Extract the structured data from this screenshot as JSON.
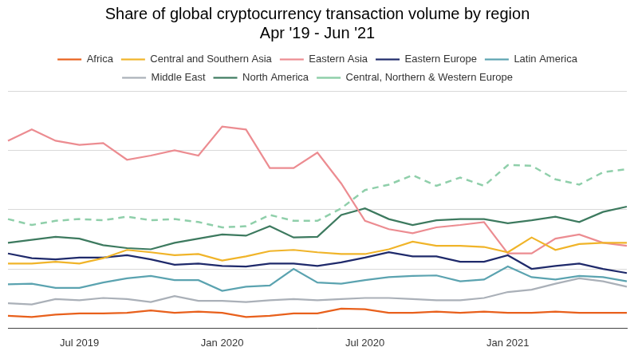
{
  "chart_data": {
    "type": "line",
    "title": [
      "Share of global cryptocurrency transaction volume by region",
      "Apr '19 - Jun '21"
    ],
    "categories": [
      null,
      null,
      null,
      "Jul 2019",
      null,
      null,
      null,
      null,
      null,
      "Jan 2020",
      null,
      null,
      null,
      null,
      null,
      "Jul 2020",
      null,
      null,
      null,
      null,
      null,
      "Jan 2021",
      null,
      null,
      null,
      null,
      null
    ],
    "ylim": [
      0,
      40
    ],
    "yticks": [
      0,
      10,
      20,
      30,
      40
    ],
    "grid": true,
    "legend": "top",
    "tick_labels": "x",
    "series": [
      {
        "name": "Africa",
        "color": "#e8601c",
        "line_style": "solid",
        "values": [
          2.1,
          1.9,
          2.3,
          2.5,
          2.5,
          2.6,
          3.0,
          2.6,
          2.8,
          2.6,
          1.9,
          2.1,
          2.5,
          2.5,
          3.3,
          3.2,
          2.6,
          2.6,
          2.8,
          2.6,
          2.8,
          2.6,
          2.6,
          2.8,
          2.6,
          2.6,
          2.6
        ]
      },
      {
        "name": "Central and Southern Asia",
        "color": "#f0b429",
        "line_style": "solid",
        "values": [
          10.9,
          10.9,
          11.2,
          10.9,
          11.8,
          13.2,
          12.8,
          12.3,
          12.5,
          11.4,
          12.1,
          13.0,
          13.2,
          12.8,
          12.5,
          12.5,
          13.3,
          14.6,
          13.9,
          13.9,
          13.7,
          12.8,
          15.3,
          13.2,
          14.2,
          14.4,
          14.4
        ]
      },
      {
        "name": "Eastern Asia",
        "color": "#ec8c91",
        "line_style": "solid",
        "values": [
          31.6,
          33.5,
          31.6,
          30.9,
          31.2,
          28.4,
          29.1,
          30.0,
          29.1,
          34.0,
          33.5,
          27.0,
          27.0,
          29.6,
          24.4,
          18.1,
          16.7,
          16.0,
          17.0,
          17.4,
          17.9,
          12.6,
          12.6,
          15.1,
          15.8,
          14.4,
          13.9
        ]
      },
      {
        "name": "Eastern Europe",
        "color": "#1f2a6b",
        "line_style": "solid",
        "values": [
          12.6,
          11.8,
          11.6,
          11.9,
          11.9,
          12.3,
          11.6,
          10.7,
          10.9,
          10.5,
          10.4,
          10.9,
          10.9,
          10.5,
          11.1,
          11.9,
          12.8,
          12.1,
          12.1,
          11.2,
          11.2,
          12.3,
          10.0,
          10.5,
          10.9,
          10.0,
          9.3
        ]
      },
      {
        "name": "Latin America",
        "color": "#5ba3b0",
        "line_style": "solid",
        "values": [
          7.4,
          7.5,
          6.8,
          6.8,
          7.7,
          8.4,
          8.8,
          8.1,
          8.1,
          6.3,
          7.0,
          7.2,
          10.0,
          7.7,
          7.5,
          8.1,
          8.6,
          8.8,
          8.9,
          7.9,
          8.2,
          10.4,
          8.6,
          8.2,
          8.8,
          8.6,
          7.9
        ]
      },
      {
        "name": "Middle East",
        "color": "#aab0b8",
        "line_style": "solid",
        "values": [
          4.2,
          4.0,
          4.9,
          4.7,
          5.1,
          4.9,
          4.4,
          5.4,
          4.6,
          4.6,
          4.4,
          4.7,
          4.9,
          4.7,
          4.9,
          5.1,
          5.1,
          4.9,
          4.7,
          4.7,
          5.1,
          6.1,
          6.5,
          7.5,
          8.4,
          7.9,
          7.0
        ]
      },
      {
        "name": "North America",
        "color": "#3d7a5f",
        "line_style": "solid",
        "values": [
          14.4,
          14.9,
          15.4,
          15.1,
          14.0,
          13.5,
          13.3,
          14.4,
          15.1,
          15.8,
          15.6,
          17.2,
          15.3,
          15.4,
          19.1,
          20.2,
          18.4,
          17.4,
          18.2,
          18.4,
          18.4,
          17.7,
          18.2,
          18.8,
          17.9,
          19.6,
          20.5
        ]
      },
      {
        "name": "Central, Northern & Western Europe",
        "color": "#8fcfaa",
        "line_style": "dashed",
        "values": [
          18.4,
          17.4,
          18.1,
          18.4,
          18.2,
          18.8,
          18.2,
          18.4,
          17.9,
          17.0,
          17.2,
          19.1,
          18.1,
          18.1,
          20.2,
          23.3,
          24.2,
          25.8,
          24.0,
          25.4,
          24.0,
          27.5,
          27.4,
          25.1,
          24.2,
          26.3,
          26.8
        ]
      }
    ]
  }
}
